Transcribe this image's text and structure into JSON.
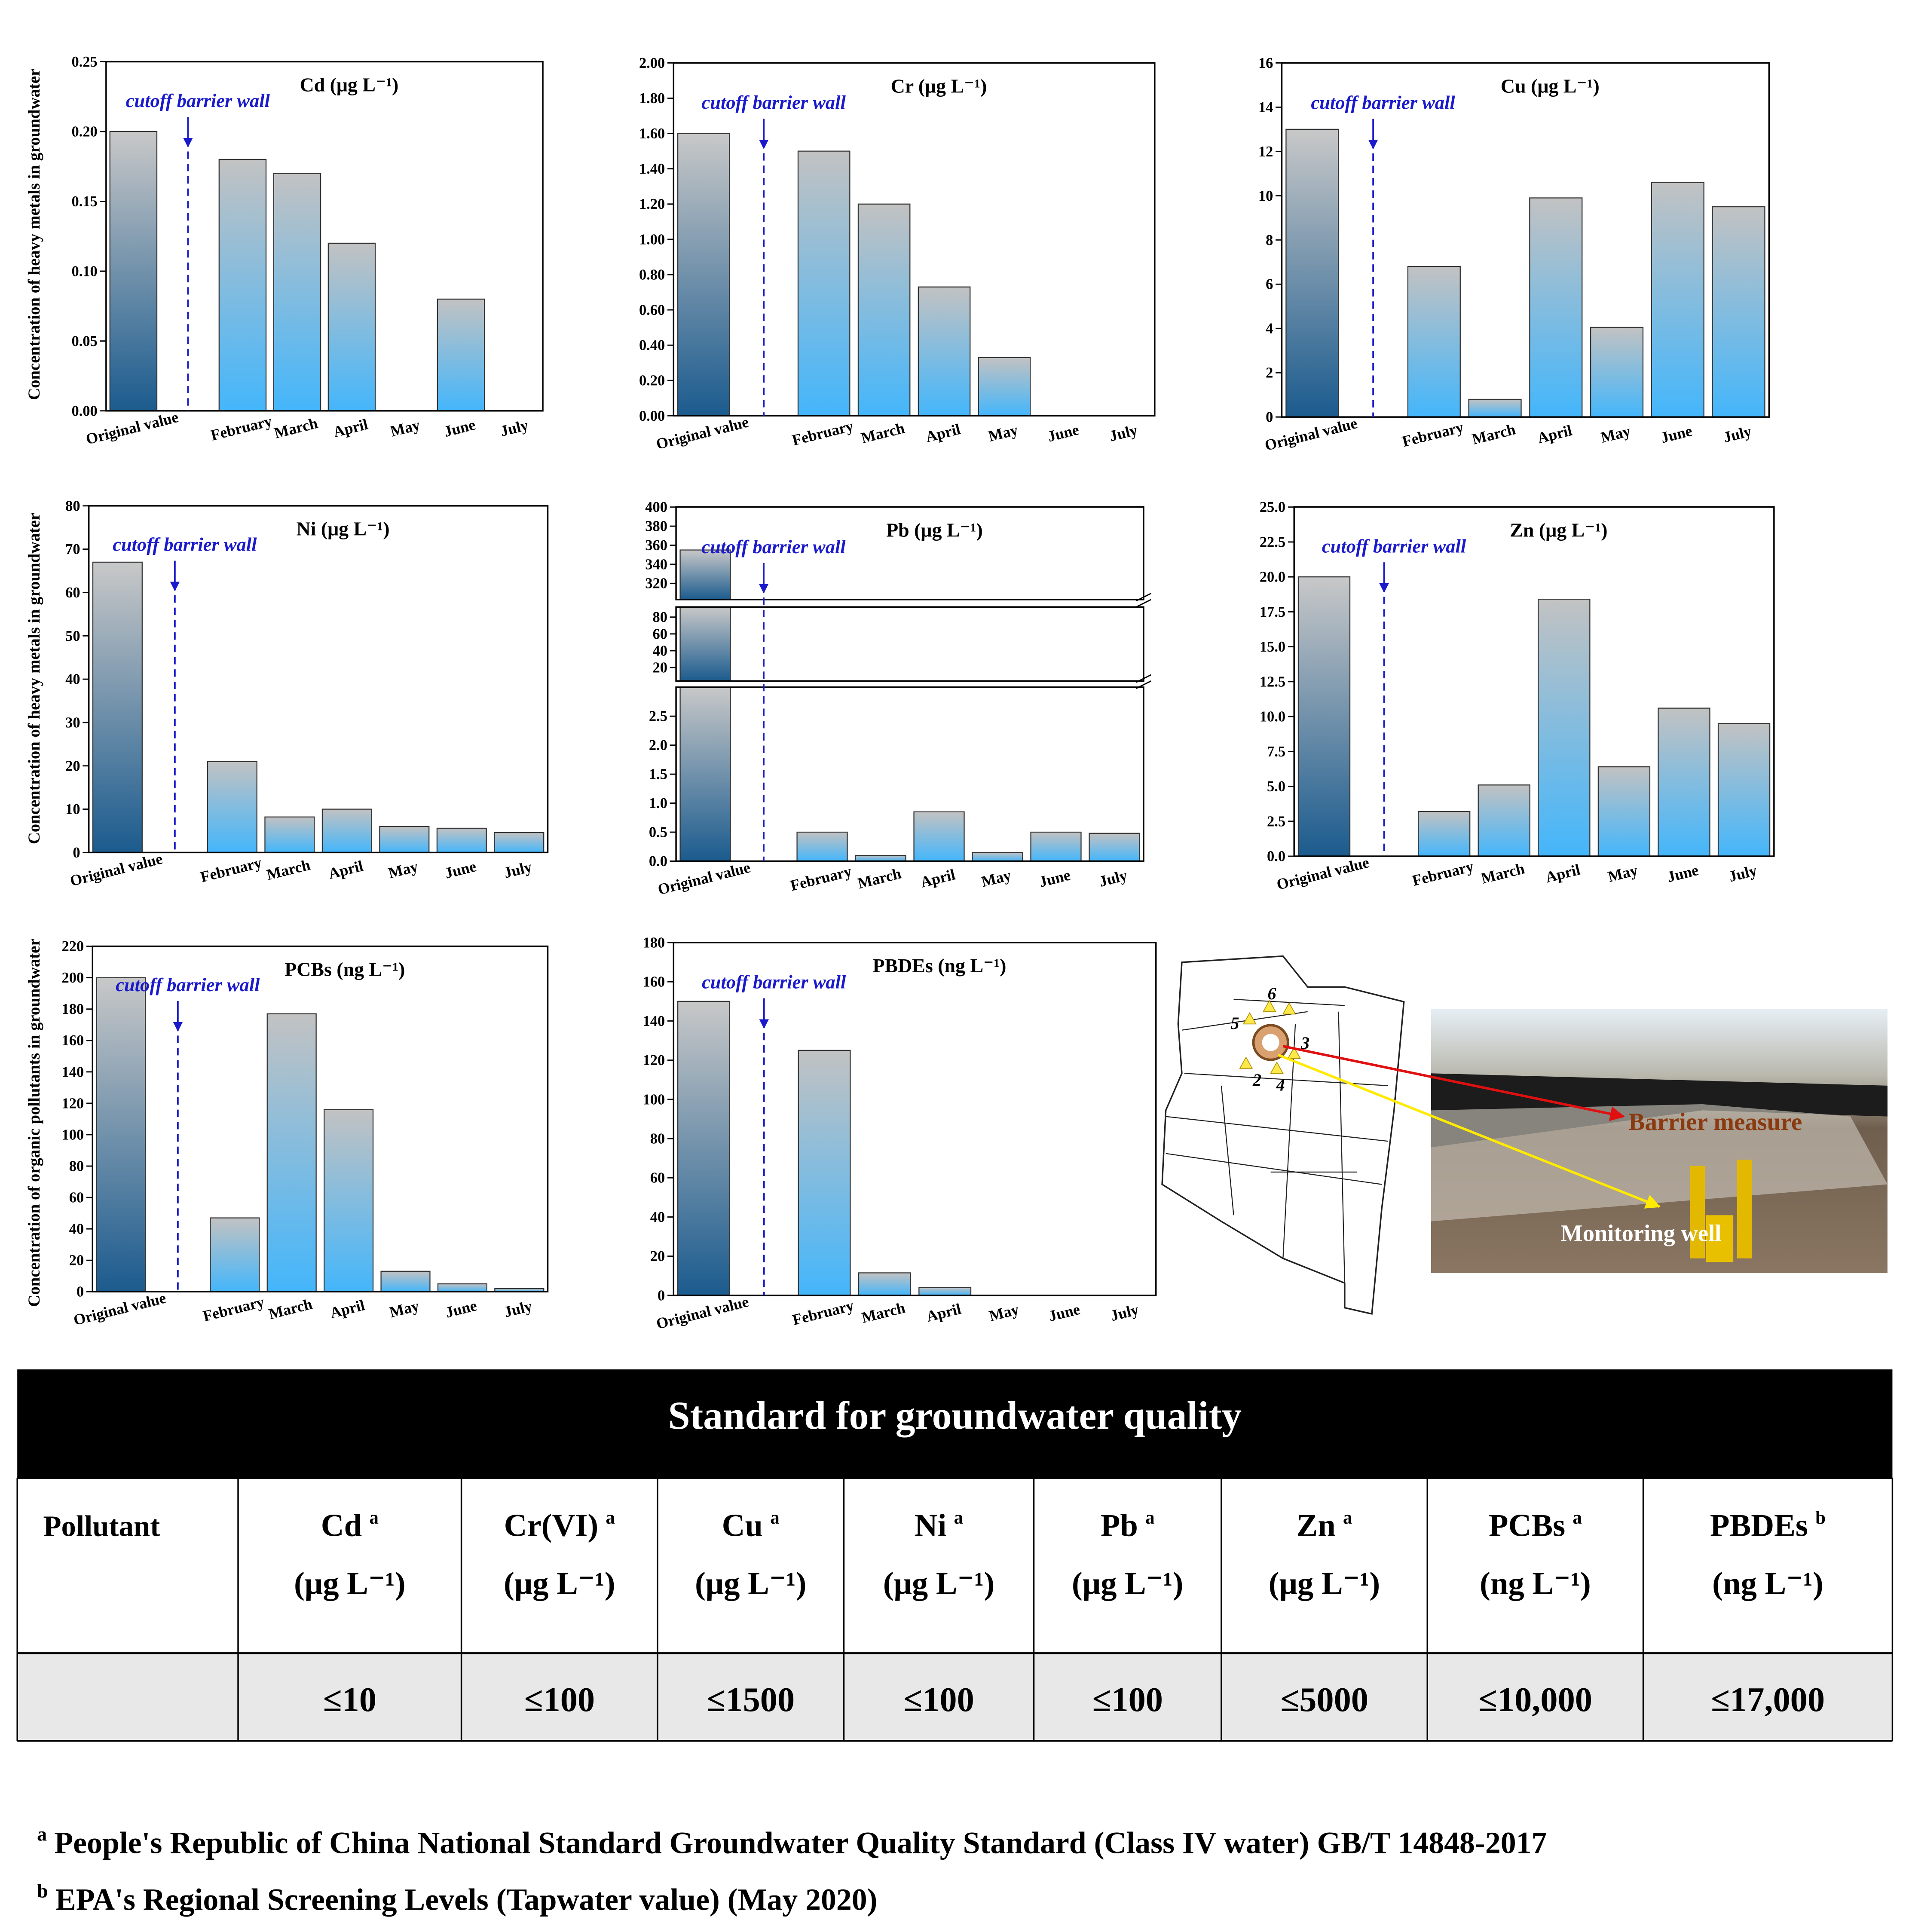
{
  "chart_data": [
    {
      "type": "bar",
      "title": "Cd (μg L⁻¹)",
      "y_label": "Concentration of heavy metals in groundwater",
      "annotation": "cutoff barrier wall",
      "categories": [
        "Original value",
        "February",
        "March",
        "April",
        "May",
        "June",
        "July"
      ],
      "values": [
        0.2,
        0.18,
        0.17,
        0.12,
        0,
        0.08,
        0
      ],
      "ylim": [
        0,
        0.25
      ],
      "yticks": [
        {
          "value": 0,
          "label": "0.00"
        },
        {
          "value": 0.05,
          "label": "0.05"
        },
        {
          "value": 0.1,
          "label": "0.10"
        },
        {
          "value": 0.15,
          "label": "0.15"
        },
        {
          "value": 0.2,
          "label": "0.20"
        },
        0.25
      ],
      "gradient": [
        "#c2c2c2",
        "#44b6fb"
      ],
      "gradient_first": [
        "#c8c8c8",
        "#1b5b8e"
      ]
    },
    {
      "type": "bar",
      "title": "Cr (μg L⁻¹)",
      "annotation": "cutoff barrier wall",
      "categories": [
        "Original value",
        "February",
        "March",
        "April",
        "May",
        "June",
        "July"
      ],
      "values": [
        1.6,
        1.5,
        1.2,
        0.73,
        0.33,
        0,
        0
      ],
      "ylim": [
        0,
        2
      ],
      "yticks": [
        {
          "value": 0,
          "label": "0.00"
        },
        {
          "value": 0.2,
          "label": "0.20"
        },
        {
          "value": 0.4,
          "label": "0.40"
        },
        {
          "value": 0.6,
          "label": "0.60"
        },
        {
          "value": 0.8,
          "label": "0.80"
        },
        {
          "value": 1,
          "label": "1.00"
        },
        {
          "value": 1.2,
          "label": "1.20"
        },
        {
          "value": 1.4,
          "label": "1.40"
        },
        {
          "value": 1.6,
          "label": "1.60"
        },
        {
          "value": 1.8,
          "label": "1.80"
        },
        {
          "value": 2,
          "label": "2.00"
        }
      ],
      "gradient": [
        "#c2c2c2",
        "#44b6fb"
      ],
      "gradient_first": [
        "#c8c8c8",
        "#1b5b8e"
      ]
    },
    {
      "type": "bar",
      "title": "Cu (μg L⁻¹)",
      "annotation": "cutoff barrier wall",
      "categories": [
        "Original value",
        "February",
        "March",
        "April",
        "May",
        "June",
        "July"
      ],
      "values": [
        13,
        6.8,
        0.8,
        9.9,
        4.05,
        10.6,
        9.5
      ],
      "ylim": [
        0,
        16
      ],
      "yticks": [
        0,
        2,
        4,
        6,
        8,
        10,
        12,
        14,
        16
      ],
      "gradient": [
        "#c2c2c2",
        "#44b6fb"
      ],
      "gradient_first": [
        "#c8c8c8",
        "#1b5b8e"
      ]
    },
    {
      "type": "bar",
      "title": "Ni (μg L⁻¹)",
      "y_label": "Concentration of heavy metals in groundwater",
      "annotation": "cutoff barrier wall",
      "categories": [
        "Original value",
        "February",
        "March",
        "April",
        "May",
        "June",
        "July"
      ],
      "values": [
        67,
        21,
        8.2,
        10,
        6,
        5.6,
        4.6
      ],
      "ylim": [
        0,
        80
      ],
      "yticks": [
        0,
        10,
        20,
        30,
        40,
        50,
        60,
        70,
        80
      ],
      "gradient": [
        "#c2c2c2",
        "#44b6fb"
      ],
      "gradient_first": [
        "#c8c8c8",
        "#1b5b8e"
      ]
    },
    {
      "type": "bar",
      "title": "Pb (μg L⁻¹)",
      "annotation": "cutoff barrier wall",
      "categories": [
        "Original value",
        "February",
        "March",
        "April",
        "May",
        "June",
        "July"
      ],
      "values": [
        355,
        0.5,
        0.1,
        0.85,
        0.15,
        0.5,
        0.48
      ],
      "y_segments": [
        {
          "ylim": [
            0,
            3
          ],
          "yticks": [
            {
              "value": 0,
              "label": "0.0"
            },
            0.5,
            {
              "value": 1,
              "label": "1.0"
            },
            1.5,
            {
              "value": 2,
              "label": "2.0"
            },
            2.5
          ]
        },
        {
          "ylim": [
            4,
            92
          ],
          "yticks": [
            20,
            40,
            60,
            80
          ]
        },
        {
          "ylim": [
            303,
            400
          ],
          "yticks": [
            320,
            340,
            360,
            380,
            400
          ]
        }
      ],
      "gradient": [
        "#c2c2c2",
        "#44b6fb"
      ],
      "gradient_first": [
        "#c8c8c8",
        "#1b5b8e"
      ]
    },
    {
      "type": "bar",
      "title": "Zn (μg L⁻¹)",
      "annotation": "cutoff barrier wall",
      "categories": [
        "Original value",
        "February",
        "March",
        "April",
        "May",
        "June",
        "July"
      ],
      "values": [
        20,
        3.2,
        5.1,
        18.4,
        6.4,
        10.6,
        9.5
      ],
      "ylim": [
        0,
        25
      ],
      "yticks": [
        {
          "value": 0,
          "label": "0.0"
        },
        2.5,
        {
          "value": 5,
          "label": "5.0"
        },
        7.5,
        {
          "value": 10,
          "label": "10.0"
        },
        12.5,
        {
          "value": 15,
          "label": "15.0"
        },
        17.5,
        {
          "value": 20,
          "label": "20.0"
        },
        22.5,
        {
          "value": 25,
          "label": "25.0"
        }
      ],
      "gradient": [
        "#c2c2c2",
        "#44b6fb"
      ],
      "gradient_first": [
        "#c8c8c8",
        "#1b5b8e"
      ]
    },
    {
      "type": "bar",
      "title": "PCBs (ng L⁻¹)",
      "y_label": "Concentration of organic pollutants in groundwater",
      "annotation": "cutoff barrier wall",
      "categories": [
        "Original value",
        "February",
        "March",
        "April",
        "May",
        "June",
        "July"
      ],
      "values": [
        200,
        47,
        177,
        116,
        13,
        5,
        2
      ],
      "ylim": [
        0,
        220
      ],
      "yticks": [
        0,
        20,
        40,
        60,
        80,
        100,
        120,
        140,
        160,
        180,
        200,
        220
      ],
      "gradient": [
        "#c2c2c2",
        "#44b6fb"
      ],
      "gradient_first": [
        "#c8c8c8",
        "#1b5b8e"
      ]
    },
    {
      "type": "bar",
      "title": "PBDEs (ng L⁻¹)",
      "annotation": "cutoff barrier wall",
      "categories": [
        "Original value",
        "February",
        "March",
        "April",
        "May",
        "June",
        "July"
      ],
      "values": [
        150,
        125,
        11.5,
        4,
        0,
        0,
        0
      ],
      "ylim": [
        0,
        180
      ],
      "yticks": [
        0,
        20,
        40,
        60,
        80,
        100,
        120,
        140,
        160,
        180
      ],
      "gradient": [
        "#c2c2c2",
        "#44b6fb"
      ],
      "gradient_first": [
        "#c8c8c8",
        "#1b5b8e"
      ]
    }
  ],
  "map": {
    "well_numbers": [
      "6",
      "5",
      "3",
      "2",
      "4"
    ],
    "barrier_label": "Barrier measure",
    "well_label": "Monitoring well"
  },
  "table": {
    "title": "Standard for groundwater quality",
    "row_header": "Pollutant",
    "columns": [
      {
        "name": "Cd",
        "note": "a",
        "unit": "(μg L⁻¹)",
        "limit": "≤10"
      },
      {
        "name": "Cr(VI)",
        "note": "a",
        "unit": "(μg L⁻¹)",
        "limit": "≤100"
      },
      {
        "name": "Cu",
        "note": "a",
        "unit": "(μg L⁻¹)",
        "limit": "≤1500"
      },
      {
        "name": "Ni",
        "note": "a",
        "unit": "(μg L⁻¹)",
        "limit": "≤100"
      },
      {
        "name": "Pb",
        "note": "a",
        "unit": "(μg L⁻¹)",
        "limit": "≤100"
      },
      {
        "name": "Zn",
        "note": "a",
        "unit": "(μg L⁻¹)",
        "limit": "≤5000"
      },
      {
        "name": "PCBs",
        "note": "a",
        "unit": "(ng L⁻¹)",
        "limit": "≤10,000"
      },
      {
        "name": "PBDEs",
        "note": "b",
        "unit": "(ng L⁻¹)",
        "limit": "≤17,000"
      }
    ]
  },
  "footnotes": [
    {
      "mark": "a",
      "text": "People's Republic of China National Standard Groundwater Quality Standard (Class IV water) GB/T 14848-2017"
    },
    {
      "mark": "b",
      "text": "EPA's Regional Screening Levels (Tapwater value) (May 2020)"
    }
  ]
}
